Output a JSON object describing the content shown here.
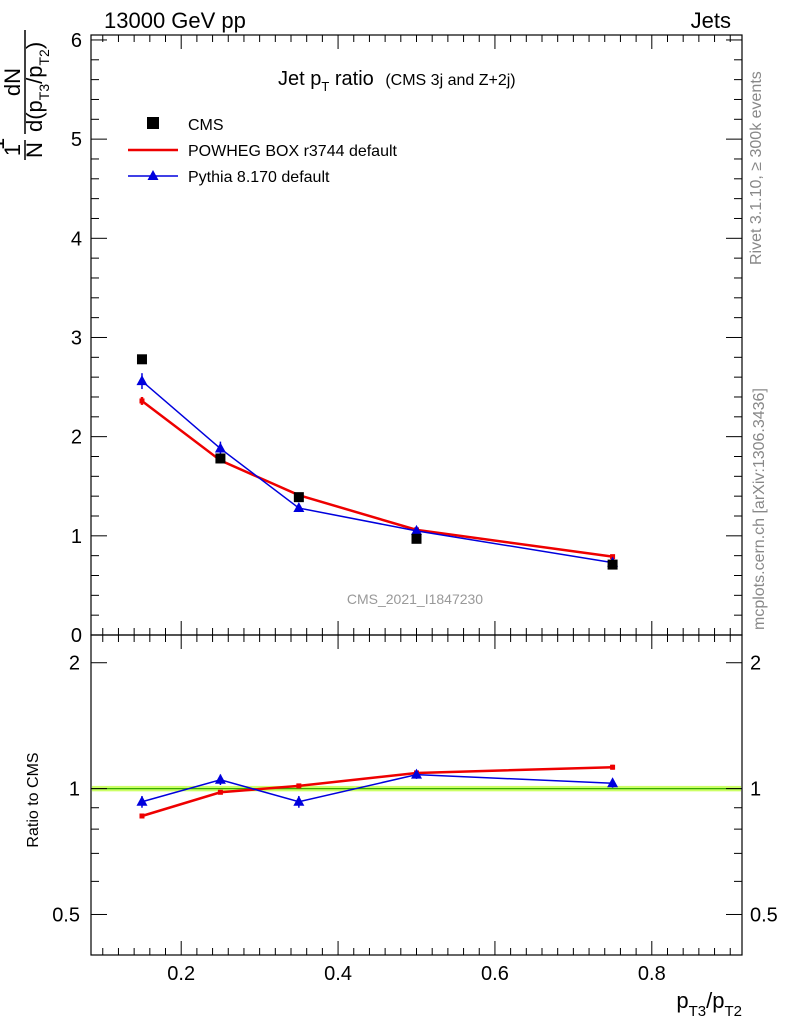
{
  "header": {
    "left": "13000 GeV pp",
    "right": "Jets"
  },
  "side": {
    "rivet": "Rivet 3.1.10, ≥ 300k events",
    "mcplots": "mcplots.cern.ch [arXiv:1306.3436]"
  },
  "colors": {
    "cms": "#000000",
    "powheg": "#ee0000",
    "pythia": "#0000dd",
    "band_fill": "#ccff66",
    "band_line": "#33aa00"
  },
  "chart_data": {
    "type": "line",
    "title": "Jet pT ratio (CMS 3j and Z+2j)",
    "title_main": "Jet p",
    "title_sub": "T",
    "title_rest": " ratio",
    "title_paren": "(CMS 3j and Z+2j)",
    "watermark": "CMS_2021_I1847230",
    "xlabel": "pT3/pT2",
    "ylabel": "1/N dN/d(pT3/pT2)",
    "ratio_ylabel": "Ratio to CMS",
    "xlim": [
      0.085,
      0.915
    ],
    "ylim": [
      0,
      6.05
    ],
    "ratio_ylim": [
      0.4,
      2.33
    ],
    "ratio_log": true,
    "x": [
      0.15,
      0.25,
      0.35,
      0.5,
      0.75
    ],
    "x_ticks": [
      "0.2",
      "0.4",
      "0.6",
      "0.8"
    ],
    "x_tick_values": [
      0.2,
      0.4,
      0.6,
      0.8
    ],
    "y_ticks": [
      "0",
      "1",
      "2",
      "3",
      "4",
      "5",
      "6"
    ],
    "y_tick_values": [
      0,
      1,
      2,
      3,
      4,
      5,
      6
    ],
    "ratio_ticks": [
      "0.5",
      "1",
      "2"
    ],
    "ratio_tick_values": [
      0.5,
      1,
      2
    ],
    "legend": {
      "placement": "top-left"
    },
    "series": [
      {
        "name": "CMS",
        "marker": "square",
        "values": [
          2.78,
          1.78,
          1.39,
          0.97,
          0.71
        ]
      },
      {
        "name": "POWHEG BOX r3744 default",
        "marker": "none",
        "values": [
          2.36,
          1.76,
          1.41,
          1.06,
          0.79
        ],
        "errors": [
          0.04,
          0.03,
          0.02,
          0.015,
          0.015
        ]
      },
      {
        "name": "Pythia 8.170 default",
        "marker": "triangle",
        "values": [
          2.56,
          1.88,
          1.28,
          1.05,
          0.73
        ],
        "errors": [
          0.08,
          0.07,
          0.04,
          0.03,
          0.02
        ]
      }
    ],
    "ratio_series": [
      {
        "name": "POWHEG BOX r3744 default",
        "values": [
          0.86,
          0.98,
          1.015,
          1.09,
          1.125
        ],
        "errors": [
          0.01,
          0.01,
          0.01,
          0.01,
          0.015
        ]
      },
      {
        "name": "Pythia 8.170 default",
        "values": [
          0.93,
          1.05,
          0.93,
          1.08,
          1.03
        ],
        "errors": [
          0.03,
          0.03,
          0.03,
          0.025,
          0.025
        ]
      }
    ],
    "ratio_band": 0.015
  }
}
